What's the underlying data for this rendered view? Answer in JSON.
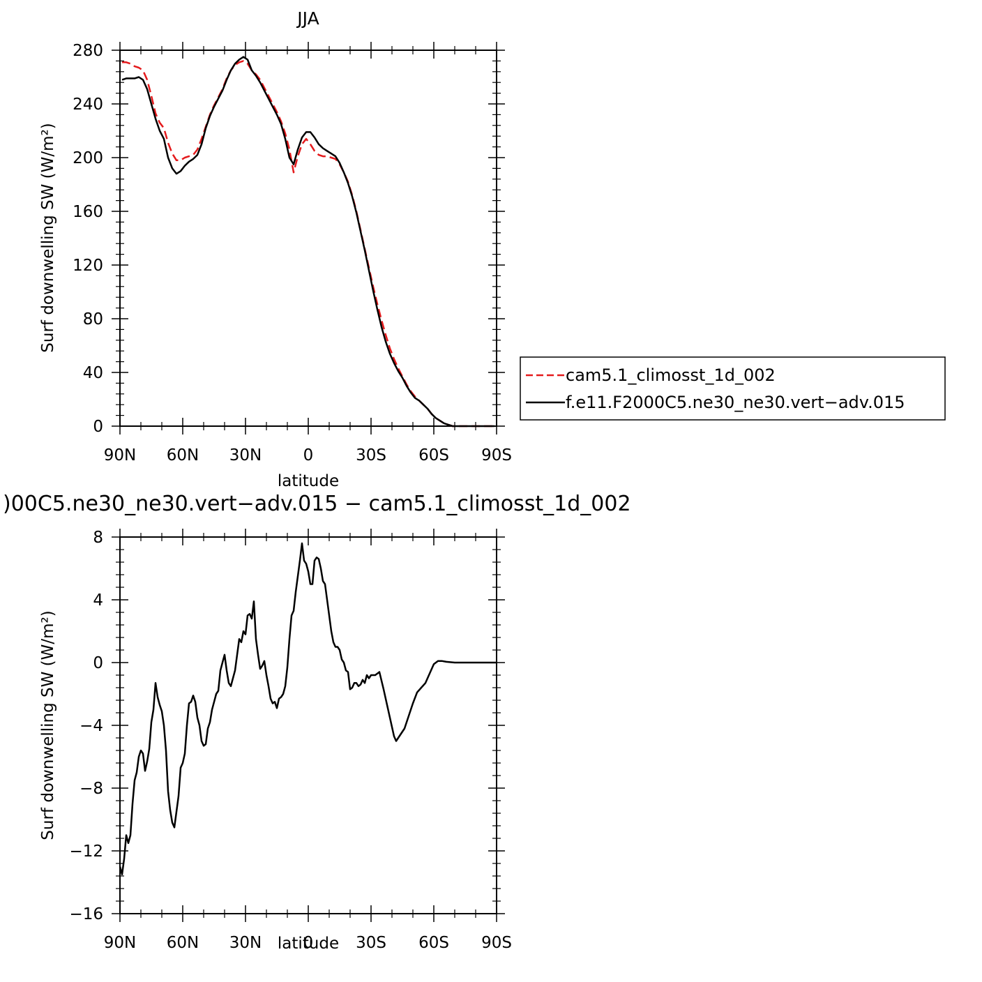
{
  "chart_data": [
    {
      "type": "line",
      "title": "JJA",
      "xlabel": "latitude",
      "ylabel": "Surf downwelling SW (W/m²)",
      "xlim": [
        90,
        -90
      ],
      "ylim": [
        0,
        280
      ],
      "x_ticks": [
        90,
        60,
        30,
        0,
        -30,
        -60,
        -90
      ],
      "x_tick_labels": [
        "90N",
        "60N",
        "30N",
        "0",
        "30S",
        "60S",
        "90S"
      ],
      "y_ticks": [
        0,
        40,
        80,
        120,
        160,
        200,
        240,
        280
      ],
      "y_tick_labels": [
        "0",
        "40",
        "80",
        "120",
        "160",
        "200",
        "240",
        "280"
      ],
      "legend": {
        "placement": "right",
        "entries": [
          "cam5.1_climosst_1d_002",
          "f.e11.F2000C5.ne30_ne30.vert−adv.015"
        ]
      },
      "series": [
        {
          "name": "cam5.1_climosst_1d_002",
          "color": "#e41a1c",
          "dash": "dashed",
          "x": [
            89,
            87,
            85,
            83,
            81,
            79,
            77,
            75,
            73,
            71,
            69,
            67,
            65,
            63,
            61,
            59,
            57,
            55,
            53,
            51,
            49,
            47,
            45,
            43,
            41,
            39,
            37,
            35,
            33,
            31,
            29,
            27,
            25,
            23,
            21,
            19,
            17,
            15,
            13,
            11,
            9,
            7,
            5,
            3,
            1,
            -1,
            -3,
            -5,
            -7,
            -9,
            -11,
            -13,
            -15,
            -17,
            -19,
            -21,
            -23,
            -25,
            -27,
            -29,
            -31,
            -33,
            -35,
            -37,
            -39,
            -41,
            -43,
            -45,
            -47,
            -49,
            -51,
            -53,
            -55,
            -57,
            -59,
            -61,
            -63,
            -65,
            -67,
            -69,
            -71,
            -73,
            -75,
            -77,
            -79,
            -81,
            -83,
            -85,
            -87,
            -89
          ],
          "y": [
            271,
            271,
            270,
            268,
            267,
            265,
            258,
            246,
            233,
            226,
            222,
            211,
            203,
            198,
            198,
            200,
            201,
            202,
            206,
            214,
            223,
            232,
            239,
            245,
            251,
            259,
            265,
            269,
            271,
            272,
            270,
            265,
            262,
            258,
            252,
            246,
            240,
            234,
            227,
            218,
            206,
            189,
            201,
            210,
            214,
            210,
            205,
            202,
            201,
            201,
            200,
            199,
            195,
            189,
            182,
            172,
            160,
            146,
            132,
            118,
            104,
            91,
            79,
            68,
            58,
            50,
            43,
            37,
            31,
            26,
            22,
            19,
            16,
            13,
            9,
            6,
            4,
            2,
            1,
            0,
            0,
            0,
            0,
            0,
            0,
            0,
            0,
            0,
            0,
            0
          ]
        },
        {
          "name": "f.e11.F2000C5.ne30_ne30.vert−adv.015",
          "color": "#000000",
          "dash": "solid",
          "x": [
            89,
            87,
            85,
            83,
            81,
            79,
            77,
            75,
            73,
            71,
            69,
            67,
            65,
            63,
            61,
            59,
            57,
            55,
            53,
            51,
            49,
            47,
            45,
            43,
            41,
            39,
            37,
            35,
            33,
            31,
            29,
            27,
            25,
            23,
            21,
            19,
            17,
            15,
            13,
            11,
            9,
            7,
            5,
            3,
            1,
            -1,
            -3,
            -5,
            -7,
            -9,
            -11,
            -13,
            -15,
            -17,
            -19,
            -21,
            -23,
            -25,
            -27,
            -29,
            -31,
            -33,
            -35,
            -37,
            -39,
            -41,
            -43,
            -45,
            -47,
            -49,
            -51,
            -53,
            -55,
            -57,
            -59,
            -61,
            -63,
            -65,
            -67,
            -69,
            -71,
            -73,
            -75,
            -77,
            -79,
            -81,
            -83,
            -85,
            -87,
            -89
          ],
          "y": [
            258,
            259,
            259,
            259,
            260,
            258,
            251,
            240,
            229,
            220,
            214,
            200,
            192,
            188,
            190,
            194,
            197,
            199,
            202,
            210,
            222,
            231,
            238,
            244,
            250,
            258,
            265,
            270,
            273,
            275,
            273,
            265,
            261,
            256,
            250,
            244,
            238,
            232,
            225,
            214,
            200,
            195,
            206,
            215,
            219,
            219,
            215,
            210,
            207,
            205,
            203,
            201,
            196,
            189,
            181,
            171,
            159,
            145,
            131,
            116,
            101,
            87,
            74,
            63,
            54,
            47,
            41,
            36,
            30,
            25,
            21,
            19,
            16,
            13,
            9,
            6,
            4,
            2,
            1,
            0,
            0,
            0,
            0,
            0,
            0,
            0,
            0,
            0,
            0,
            0
          ]
        }
      ]
    },
    {
      "type": "line",
      "title": ")00C5.ne30_ne30.vert−adv.015 − cam5.1_climosst_1d_002",
      "xlabel": "latitude",
      "ylabel": "Surf downwelling SW (W/m²)",
      "xlim": [
        90,
        -90
      ],
      "ylim": [
        -16,
        8
      ],
      "x_ticks": [
        90,
        60,
        30,
        0,
        -30,
        -60,
        -90
      ],
      "x_tick_labels": [
        "90N",
        "60N",
        "30N",
        "0",
        "30S",
        "60S",
        "90S"
      ],
      "y_ticks": [
        -16,
        -12,
        -8,
        -4,
        0,
        4,
        8
      ],
      "y_tick_labels": [
        "−16",
        "−12",
        "−8",
        "−4",
        "0",
        "4",
        "8"
      ],
      "series": [
        {
          "color": "#000000",
          "dash": "solid",
          "x": [
            90,
            89,
            88,
            87,
            86,
            85,
            84,
            83,
            82,
            81,
            80,
            79,
            78,
            77,
            76,
            75,
            74,
            73,
            72,
            71,
            70,
            69,
            68,
            67,
            66,
            65,
            64,
            63,
            62,
            61,
            60,
            59,
            58,
            57,
            56,
            55,
            54,
            53,
            52,
            51,
            50,
            49,
            48,
            47,
            46,
            45,
            44,
            43,
            42,
            41,
            40,
            39,
            38,
            37,
            36,
            35,
            34,
            33,
            32,
            31,
            30,
            29,
            28,
            27,
            26,
            25,
            24,
            23,
            22,
            21,
            20,
            19,
            18,
            17,
            16,
            15,
            14,
            13,
            12,
            11,
            10,
            9,
            8,
            7,
            6,
            5,
            4,
            3,
            2,
            1,
            0,
            -1,
            -2,
            -3,
            -4,
            -5,
            -6,
            -7,
            -8,
            -9,
            -10,
            -11,
            -12,
            -13,
            -14,
            -15,
            -16,
            -17,
            -18,
            -19,
            -20,
            -21,
            -22,
            -23,
            -24,
            -25,
            -26,
            -27,
            -28,
            -29,
            -30,
            -32,
            -34,
            -36,
            -38,
            -40,
            -41,
            -42,
            -44,
            -46,
            -48,
            -50,
            -52,
            -54,
            -56,
            -58,
            -60,
            -62,
            -64,
            -66,
            -70,
            -75,
            -80,
            -85,
            -90
          ],
          "y": [
            -13.0,
            -13.5,
            -12.5,
            -11.0,
            -11.5,
            -11.0,
            -9.0,
            -7.5,
            -7.0,
            -6.0,
            -5.6,
            -5.8,
            -6.9,
            -6.3,
            -5.5,
            -3.8,
            -3.0,
            -1.3,
            -2.2,
            -2.7,
            -3.1,
            -4.0,
            -5.6,
            -8.2,
            -9.4,
            -10.2,
            -10.5,
            -9.5,
            -8.5,
            -6.7,
            -6.4,
            -5.8,
            -4.0,
            -2.6,
            -2.5,
            -2.1,
            -2.5,
            -3.5,
            -4.0,
            -5.0,
            -5.3,
            -5.2,
            -4.2,
            -3.8,
            -3.0,
            -2.5,
            -2.0,
            -1.8,
            -0.5,
            0.0,
            0.5,
            -0.5,
            -1.3,
            -1.5,
            -1.0,
            -0.5,
            0.5,
            1.5,
            1.3,
            2.0,
            1.8,
            3.0,
            3.1,
            2.8,
            3.9,
            1.5,
            0.5,
            -0.4,
            -0.2,
            0.1,
            -0.8,
            -1.5,
            -2.3,
            -2.6,
            -2.5,
            -2.9,
            -2.3,
            -2.2,
            -2.0,
            -1.5,
            -0.3,
            1.5,
            3.0,
            3.3,
            4.5,
            5.5,
            6.5,
            7.6,
            6.5,
            6.3,
            5.8,
            5.0,
            5.0,
            6.5,
            6.7,
            6.6,
            6.0,
            5.2,
            5.0,
            4.0,
            3.0,
            2.0,
            1.3,
            1.0,
            1.0,
            0.8,
            0.2,
            0.0,
            -0.5,
            -0.6,
            -1.7,
            -1.6,
            -1.3,
            -1.3,
            -1.5,
            -1.4,
            -1.1,
            -1.3,
            -0.8,
            -1.0,
            -0.8,
            -0.8,
            -0.6,
            -1.7,
            -2.9,
            -4.1,
            -4.7,
            -5.0,
            -4.6,
            -4.2,
            -3.4,
            -2.6,
            -1.9,
            -1.6,
            -1.3,
            -0.7,
            -0.1,
            0.1,
            0.1,
            0.05,
            0.0,
            0.0,
            0.0,
            0.0,
            0.0
          ]
        }
      ]
    }
  ]
}
